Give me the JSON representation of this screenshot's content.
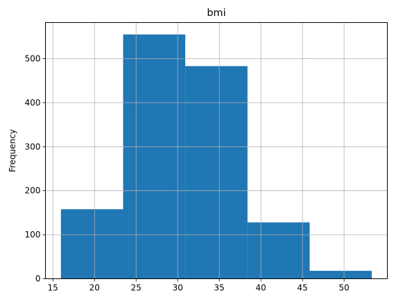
{
  "chart_data": {
    "type": "bar",
    "title": "bmi",
    "xlabel": "",
    "ylabel": "Frequency",
    "bins": [
      {
        "start": 15.96,
        "end": 23.44,
        "count": 158
      },
      {
        "start": 23.44,
        "end": 30.91,
        "count": 555
      },
      {
        "start": 30.91,
        "end": 38.39,
        "count": 483
      },
      {
        "start": 38.39,
        "end": 45.86,
        "count": 128
      },
      {
        "start": 45.86,
        "end": 53.33,
        "count": 18
      }
    ],
    "xlim": [
      14.1,
      55.2
    ],
    "ylim": [
      0,
      582
    ],
    "xticks": [
      15,
      20,
      25,
      30,
      35,
      40,
      45,
      50
    ],
    "yticks": [
      0,
      100,
      200,
      300,
      400,
      500
    ],
    "grid": true,
    "bar_color": "#1f77b4",
    "grid_color": "#b0b0b0"
  }
}
